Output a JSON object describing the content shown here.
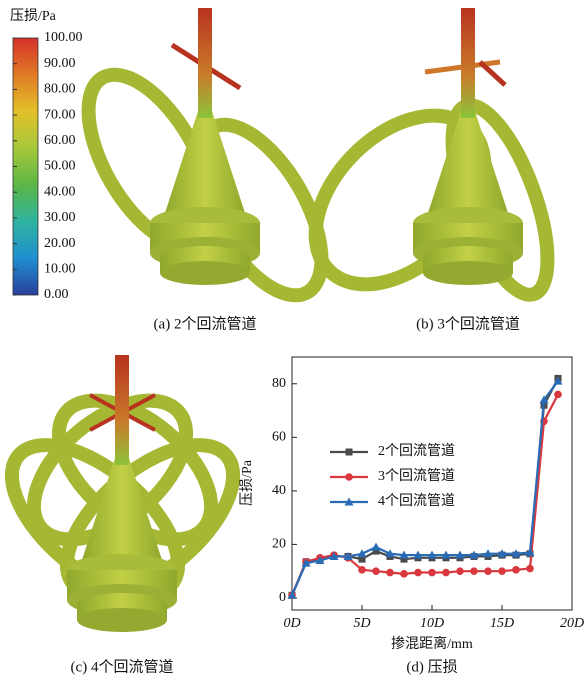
{
  "colorbar": {
    "title": "压损/Pa",
    "lim": [
      0,
      100
    ],
    "colors": [
      "#2a3f9c",
      "#1f8fcf",
      "#2fb3a0",
      "#5cb646",
      "#a6c83a",
      "#e2c12a",
      "#e07a24",
      "#d4322a"
    ],
    "ticks": [
      {
        "value": 100,
        "label": "100.00"
      },
      {
        "value": 90,
        "label": "90.00"
      },
      {
        "value": 80,
        "label": "80.00"
      },
      {
        "value": 70,
        "label": "70.00"
      },
      {
        "value": 60,
        "label": "60.00"
      },
      {
        "value": 50,
        "label": "50.00"
      },
      {
        "value": 40,
        "label": "40.00"
      },
      {
        "value": 30,
        "label": "30.00"
      },
      {
        "value": 20,
        "label": "20.00"
      },
      {
        "value": 10,
        "label": "10.00"
      },
      {
        "value": 0,
        "label": "0.00"
      }
    ]
  },
  "captions": [
    "(a) 2个回流管道",
    "(b) 3个回流管道",
    "(c) 4个回流管道",
    "(d) 压损"
  ],
  "chart_data": {
    "type": "line",
    "xlabel": "掺混距离/mm",
    "ylabel": "压损/Pa",
    "x": [
      0,
      1,
      2,
      3,
      4,
      5,
      6,
      7,
      8,
      9,
      10,
      11,
      12,
      13,
      14,
      15,
      16,
      17,
      18,
      19
    ],
    "xlim": [
      0,
      20
    ],
    "xticks": [
      {
        "value": 0,
        "label": "0D"
      },
      {
        "value": 5,
        "label": "5D"
      },
      {
        "value": 10,
        "label": "10D"
      },
      {
        "value": 15,
        "label": "15D"
      },
      {
        "value": 20,
        "label": "20D"
      }
    ],
    "ylim": [
      -4.5,
      90
    ],
    "yticks": [
      0,
      20,
      40,
      60,
      80
    ],
    "series": [
      {
        "name": "2个回流管道",
        "color": "#4a4a4a",
        "marker": "square",
        "values": [
          1,
          13.5,
          14.5,
          15.5,
          15.5,
          14.5,
          17.5,
          15.5,
          14.5,
          15,
          15,
          15,
          15,
          15.5,
          15.5,
          16,
          16,
          16.5,
          72,
          82
        ]
      },
      {
        "name": "3个回流管道",
        "color": "#d9383f",
        "marker": "circle",
        "values": [
          1,
          13.5,
          15,
          16,
          15,
          10.5,
          10,
          9.5,
          9,
          9.5,
          9.5,
          9.5,
          10,
          10,
          10,
          10,
          10.5,
          11,
          66,
          76
        ]
      },
      {
        "name": "4个回流管道",
        "color": "#2a6bb5",
        "marker": "triangle",
        "values": [
          1,
          13,
          14,
          15.5,
          15.5,
          16.5,
          19,
          16.5,
          16,
          16,
          16,
          16,
          16,
          16,
          16.5,
          16.5,
          16.5,
          17,
          74,
          81
        ]
      }
    ]
  }
}
